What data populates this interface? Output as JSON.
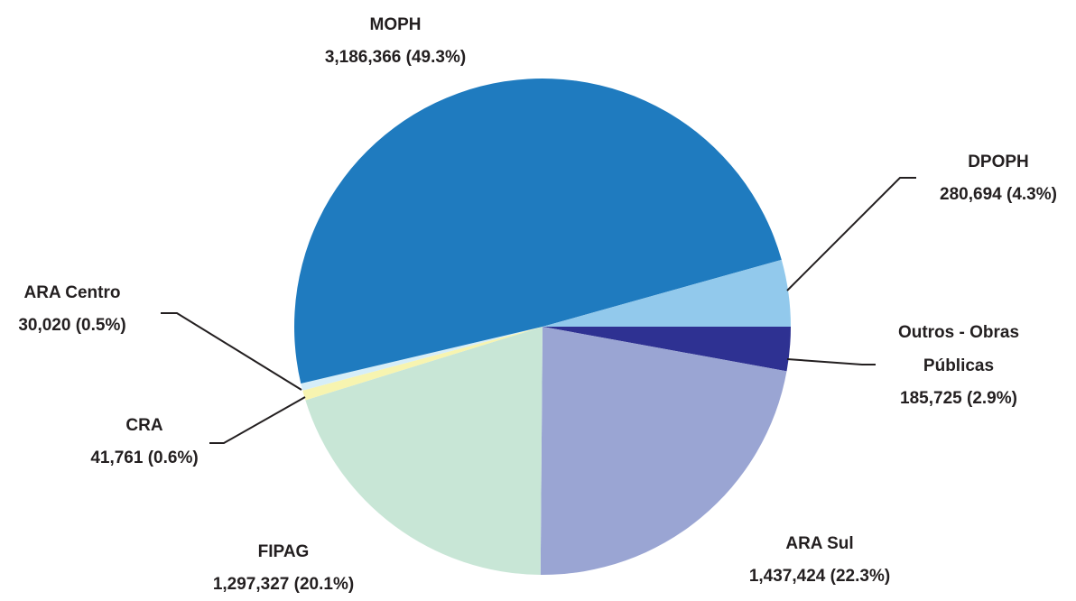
{
  "chart_data": {
    "type": "pie",
    "categories": [
      "Outros - Obras Públicas",
      "ARA Sul",
      "FIPAG",
      "CRA",
      "ARA Centro",
      "MOPH",
      "DPOPH"
    ],
    "values": [
      185725,
      1437424,
      1297327,
      41761,
      30020,
      3186366,
      280694
    ],
    "value_labels": [
      "185,725 (2.9%)",
      "1,437,424 (22.3%)",
      "1,297,327 (20.1%)",
      "41,761 (0.6%)",
      "30,020 (0.5%)",
      "3,186,366 (49.3%)",
      "280,694 (4.3%)"
    ],
    "colors": [
      "#2e3192",
      "#9aa5d3",
      "#c8e6d6",
      "#f7f4b0",
      "#d6eef8",
      "#1f7bbf",
      "#92c9ec"
    ]
  }
}
